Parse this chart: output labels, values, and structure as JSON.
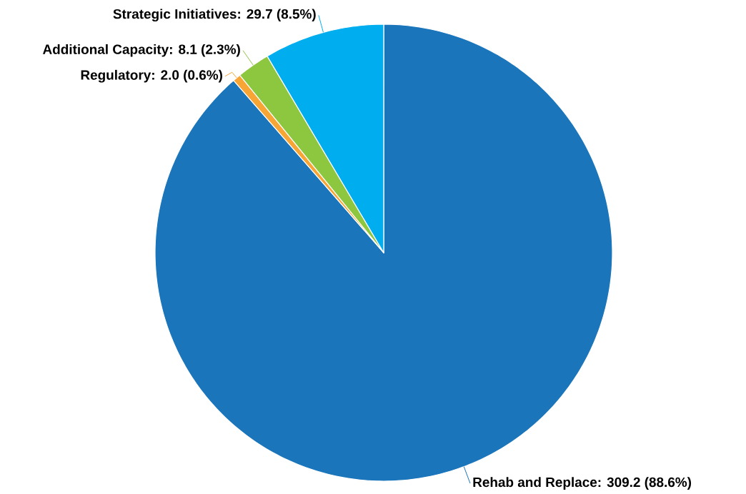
{
  "chart_data": {
    "type": "pie",
    "categories": [
      "Rehab and Replace: 309.2 (88.6%)",
      "Regulatory: 2.0 (0.6%)",
      "Additional Capacity: 8.1 (2.3%)",
      "Strategic Initiatives: 29.7 (8.5%)"
    ],
    "values": [
      309.2,
      2.0,
      8.1,
      29.7
    ],
    "colors": [
      "#1b75bb",
      "#f7a534",
      "#8dc63f",
      "#00aeef"
    ]
  }
}
